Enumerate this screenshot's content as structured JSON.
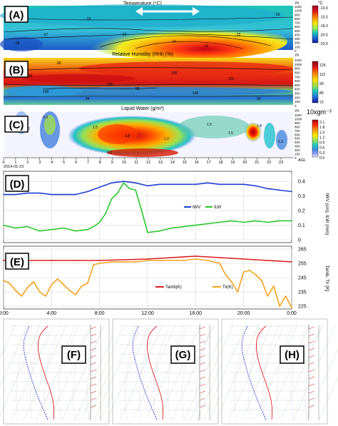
{
  "panels": {
    "A": {
      "letter": "(A)",
      "title": "Temperature (°C)",
      "unit": "m",
      "unit2": "°C"
    },
    "B": {
      "letter": "(B)",
      "title": "Relative Humidity (RHi) (%)",
      "unit": "m"
    },
    "C": {
      "letter": "(C)",
      "title": "Liquid Water (g/m³)",
      "unit": "m",
      "unit2": "10xgm⁻³",
      "agl": "AGL"
    },
    "D": {
      "letter": "(D)",
      "ylabel": "IWV (cm), ILW (mm)"
    },
    "E": {
      "letter": "(E)",
      "ylabel": "Tamb, Tir [K]"
    },
    "F": {
      "letter": "(F)"
    },
    "G": {
      "letter": "(G)"
    },
    "H": {
      "letter": "(H)"
    }
  },
  "date": "2014-01-23",
  "height_ticks": [
    "1100",
    "1000",
    "900",
    "800",
    "700",
    "600",
    "500",
    "400",
    "300",
    "200",
    "100",
    "0"
  ],
  "hour_ticks": [
    "0",
    "1",
    "2",
    "3",
    "4",
    "5",
    "6",
    "7",
    "8",
    "9",
    "10",
    "11",
    "12",
    "13",
    "14",
    "15",
    "16",
    "17",
    "18",
    "19",
    "20",
    "21",
    "22",
    "23"
  ],
  "colorbars": {
    "A": {
      "labels": [
        "-13.0",
        "-15.5",
        "-18.0",
        "-20.5",
        "-23.0"
      ],
      "colors": [
        "#a0002a",
        "#e01818",
        "#ff7a00",
        "#ffe000",
        "#a6f04a",
        "#21c9b4",
        "#1b6fd6",
        "#17179a"
      ]
    },
    "B": {
      "labels": [
        "125",
        "112",
        "99",
        "85",
        "72"
      ],
      "colors": [
        "#8a0018",
        "#e01818",
        "#ff8a00",
        "#ffe000",
        "#90e050",
        "#22c8b8",
        "#1f70d8",
        "#15159a"
      ]
    },
    "C": {
      "labels": [
        "2.1",
        "1.8",
        "1.5",
        "1.2",
        "0.9",
        "0.6",
        "0.3",
        "0.0"
      ],
      "colors": [
        "#b00018",
        "#ff3000",
        "#ff9a00",
        "#ffee00",
        "#8ee060",
        "#22c8c0",
        "#3d8ae0",
        "#9aa4ff",
        "#f2f2ff"
      ]
    }
  },
  "contour_labels": {
    "A": [
      "-18",
      "-19",
      "-17",
      "-16",
      "-15",
      "-14",
      "-13",
      "-19"
    ],
    "B": [
      "90",
      "95",
      "100",
      "105",
      "101",
      "100",
      "94",
      "95",
      "100",
      "90"
    ],
    "C": [
      "1.2",
      "0.3",
      "1.5",
      "1.8",
      "1.2",
      "1.5",
      "1.5",
      "1.2",
      "1.8",
      "1.3"
    ]
  },
  "time_ticks": [
    "0:00",
    "4:00",
    "8:00",
    "12:00",
    "16:00",
    "20:00",
    "0:00"
  ],
  "colors": {
    "iwv": "#1f3fd0",
    "ilw": "#2bc82b",
    "tamb": "#d81e1e",
    "tir": "#f5a21d",
    "letter_box": "#000000"
  },
  "chart_data": [
    {
      "type": "line",
      "panel": "D",
      "x_unit": "hour",
      "ylim": [
        0,
        0.45
      ],
      "yticks": [
        "0",
        "0.1",
        "0.2",
        "0.3",
        "0.4"
      ],
      "series": [
        {
          "name": "IWV",
          "x": [
            0,
            1,
            2,
            3,
            4,
            5,
            6,
            7,
            8,
            9,
            10,
            11,
            12,
            13,
            14,
            15,
            16,
            17,
            18,
            19,
            20,
            21,
            22,
            23,
            24
          ],
          "values": [
            0.31,
            0.31,
            0.32,
            0.32,
            0.31,
            0.31,
            0.31,
            0.33,
            0.36,
            0.39,
            0.4,
            0.39,
            0.37,
            0.38,
            0.38,
            0.38,
            0.38,
            0.39,
            0.38,
            0.38,
            0.38,
            0.37,
            0.35,
            0.34,
            0.33
          ]
        },
        {
          "name": "ILW",
          "x": [
            0,
            1,
            2,
            3,
            4,
            5,
            6,
            7,
            7.5,
            8,
            8.5,
            9,
            9.5,
            10,
            10.5,
            11,
            11.5,
            12,
            13,
            14,
            15,
            16,
            17,
            18,
            19,
            20,
            21,
            22,
            23,
            24
          ],
          "values": [
            0.1,
            0.08,
            0.09,
            0.06,
            0.07,
            0.08,
            0.06,
            0.07,
            0.09,
            0.12,
            0.18,
            0.28,
            0.32,
            0.39,
            0.35,
            0.34,
            0.2,
            0.05,
            0.06,
            0.08,
            0.09,
            0.1,
            0.11,
            0.12,
            0.13,
            0.12,
            0.13,
            0.12,
            0.13,
            0.13
          ]
        }
      ]
    },
    {
      "type": "line",
      "panel": "E",
      "x_unit": "hour",
      "ylim": [
        225,
        265
      ],
      "yticks": [
        "225",
        "235",
        "245",
        "255",
        "265"
      ],
      "series": [
        {
          "name": "Tamb(K)",
          "x": [
            0,
            2,
            4,
            6,
            8,
            10,
            12,
            14,
            16,
            18,
            20,
            22,
            24
          ],
          "values": [
            257,
            257,
            257,
            257,
            257,
            257.5,
            258,
            259,
            260,
            259,
            258,
            257,
            256
          ]
        },
        {
          "name": "Tir(K)",
          "x": [
            0,
            0.5,
            1,
            1.5,
            2,
            2.5,
            3,
            3.5,
            4,
            4.5,
            5,
            5.5,
            6,
            6.5,
            7,
            7.5,
            8,
            9,
            10,
            11,
            12,
            13,
            14,
            15,
            16,
            17,
            18,
            18.5,
            19,
            19.5,
            20,
            20.5,
            21,
            21.5,
            22,
            22.5,
            23,
            23.5,
            24
          ],
          "values": [
            243,
            241,
            236,
            232,
            238,
            242,
            235,
            232,
            240,
            244,
            240,
            236,
            233,
            239,
            241,
            254,
            255,
            256,
            256,
            256,
            257,
            257,
            257,
            257,
            258,
            257,
            255,
            247,
            242,
            235,
            249,
            250,
            247,
            243,
            232,
            239,
            225,
            232,
            224
          ]
        }
      ]
    }
  ]
}
